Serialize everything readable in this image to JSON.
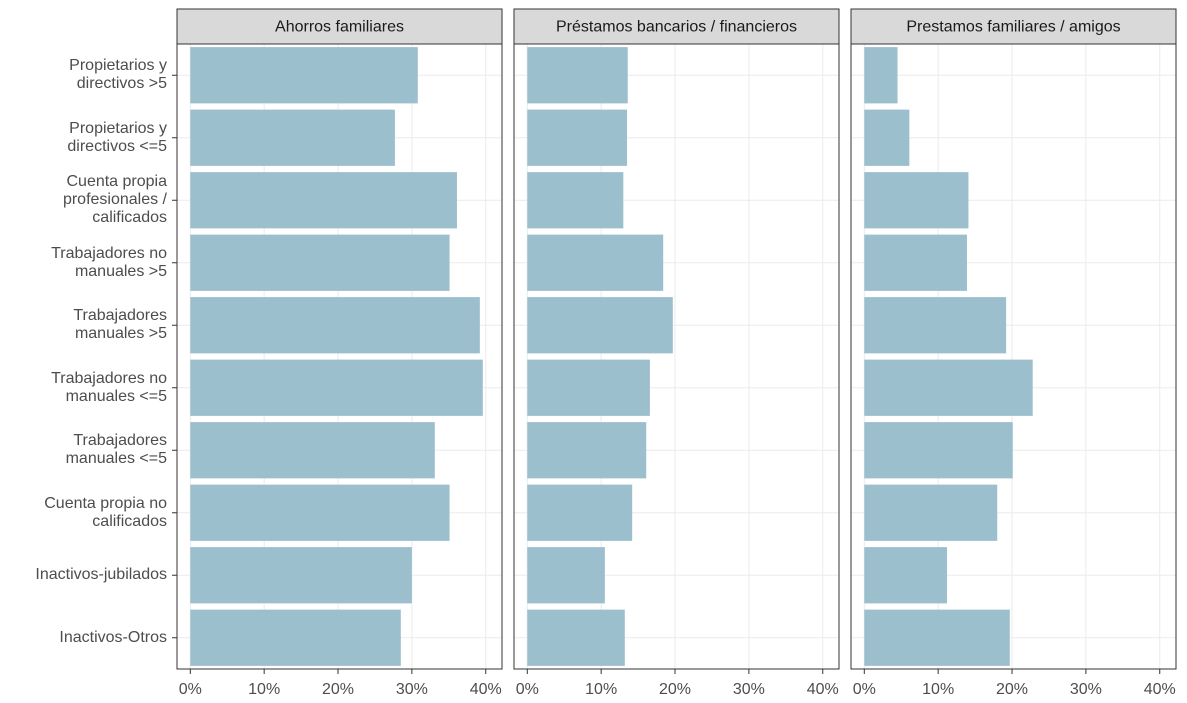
{
  "chart_data": {
    "type": "bar",
    "orientation": "horizontal",
    "facets": true,
    "categories": [
      "Propietarios y\ndirectivos >5",
      "Propietarios y\ndirectivos <=5",
      "Cuenta propia\nprofesionales /\ncalificados",
      "Trabajadores no\nmanuales >5",
      "Trabajadores\nmanuales >5",
      "Trabajadores no\nmanuales <=5",
      "Trabajadores\nmanuales <=5",
      "Cuenta propia no\ncalificados",
      "Inactivos-jubilados",
      "Inactivos-Otros"
    ],
    "series": [
      {
        "name": "Ahorros familiares",
        "color": "#9bbfcd",
        "values": [
          30.8,
          27.7,
          36.1,
          35.1,
          39.2,
          39.6,
          33.1,
          35.1,
          30.0,
          28.5
        ]
      },
      {
        "name": "Préstamos bancarios / financieros",
        "color": "#9bbfcd",
        "values": [
          13.6,
          13.5,
          13.0,
          18.4,
          19.7,
          16.6,
          16.1,
          14.2,
          10.5,
          13.2
        ]
      },
      {
        "name": "Prestamos familiares / amigos",
        "color": "#9bbfcd",
        "values": [
          4.5,
          6.1,
          14.1,
          13.9,
          19.2,
          22.8,
          20.1,
          18.0,
          11.2,
          19.7
        ]
      }
    ],
    "xlim": [
      -1.8,
      42.2
    ],
    "xticks": [
      {
        "value": 0,
        "label": "0%"
      },
      {
        "value": 10,
        "label": "10%"
      },
      {
        "value": 20,
        "label": "20%"
      },
      {
        "value": 30,
        "label": "30%"
      },
      {
        "value": 40,
        "label": "40%"
      }
    ],
    "grid": true
  }
}
